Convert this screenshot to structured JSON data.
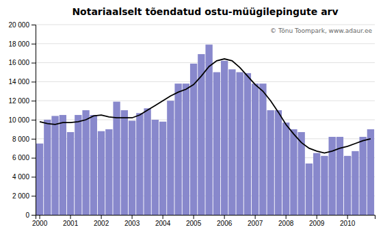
{
  "chart_data": {
    "type": "bar",
    "title": "Notariaalselt tõendatud ostu-müügilepingute arv",
    "annotation": "© Tõnu Toompark, www.adaur.ee",
    "categories": [
      "2000",
      null,
      null,
      null,
      "2001",
      null,
      null,
      null,
      "2002",
      null,
      null,
      null,
      "2003",
      null,
      null,
      null,
      "2004",
      null,
      null,
      null,
      "2005",
      null,
      null,
      null,
      "2006",
      null,
      null,
      null,
      "2007",
      null,
      null,
      null,
      "2008",
      null,
      null,
      null,
      "2009",
      null,
      null,
      null,
      "2010",
      null,
      null,
      null
    ],
    "series": [
      {
        "type": "bar",
        "color": "#8888cc",
        "values": [
          7500,
          10000,
          10400,
          10500,
          8700,
          10500,
          11000,
          10500,
          8800,
          9000,
          11900,
          11000,
          9900,
          10700,
          11200,
          10000,
          9800,
          12000,
          13800,
          13800,
          15900,
          16900,
          17900,
          15000,
          16200,
          15300,
          15000,
          14900,
          13800,
          13800,
          11000,
          11000,
          9700,
          9000,
          8700,
          5400,
          6500,
          6200,
          8200,
          8200,
          6200,
          6700,
          8200,
          9000
        ]
      },
      {
        "type": "line",
        "color": "#000000",
        "values": [
          9800,
          9600,
          9500,
          9700,
          9700,
          9800,
          10000,
          10400,
          10500,
          10300,
          10200,
          10200,
          10200,
          10500,
          11000,
          11500,
          12000,
          12500,
          12900,
          13200,
          13700,
          14600,
          15600,
          16200,
          16400,
          16200,
          15500,
          14600,
          13700,
          13000,
          12000,
          10800,
          9500,
          8500,
          7600,
          7000,
          6700,
          6500,
          6700,
          7000,
          7200,
          7500,
          7800,
          8000
        ]
      }
    ],
    "ylim": [
      0,
      20000
    ],
    "yticks": [
      0,
      {
        "value": 2000,
        "label": "2 000"
      },
      {
        "value": 4000,
        "label": "4 000"
      },
      {
        "value": 6000,
        "label": "6 000"
      },
      {
        "value": 8000,
        "label": "8 000"
      },
      {
        "value": 10000,
        "label": "10 000"
      },
      {
        "value": 12000,
        "label": "12 000"
      },
      {
        "value": 14000,
        "label": "14 000"
      },
      {
        "value": 16000,
        "label": "16 000"
      },
      {
        "value": 18000,
        "label": "18 000"
      },
      {
        "value": 20000,
        "label": "20 000"
      }
    ],
    "grid": true
  }
}
